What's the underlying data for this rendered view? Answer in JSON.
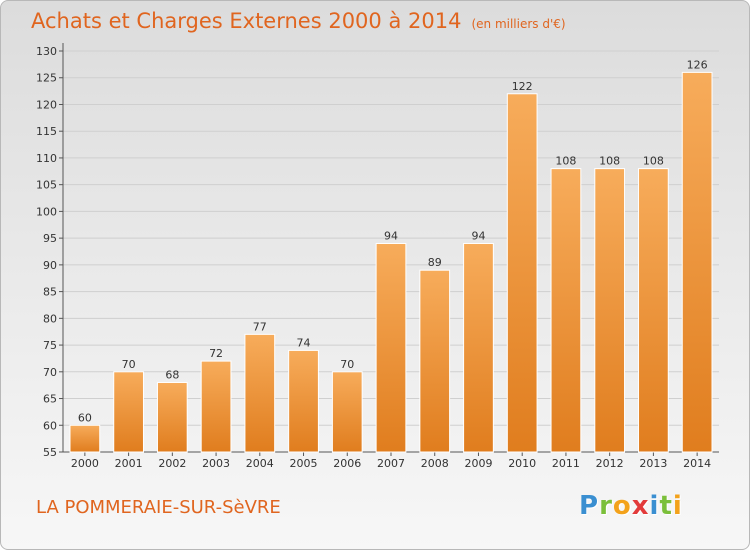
{
  "title": "Achats et Charges Externes 2000 à 2014",
  "unit": "(en milliers d'€)",
  "place": "LA POMMERAIE-SUR-SèVRE",
  "logo": {
    "letters": [
      "P",
      "r",
      "o",
      "x",
      "i",
      "t",
      "i"
    ],
    "colors": [
      "#3a8fd1",
      "#7bbf3a",
      "#f3a21b",
      "#e23a3a",
      "#3a8fd1",
      "#7bbf3a",
      "#f3a21b"
    ]
  },
  "colors": {
    "bar_light": "#f7ac5b",
    "bar_dark": "#e07d1e",
    "text_accent": "#e0651f"
  },
  "chart_data": {
    "type": "bar",
    "title": "Achats et Charges Externes 2000 à 2014",
    "categories": [
      "2000",
      "2001",
      "2002",
      "2003",
      "2004",
      "2005",
      "2006",
      "2007",
      "2008",
      "2009",
      "2010",
      "2011",
      "2012",
      "2013",
      "2014"
    ],
    "values": [
      60,
      70,
      68,
      72,
      77,
      74,
      70,
      94,
      89,
      94,
      122,
      108,
      108,
      108,
      126
    ],
    "ylim": [
      55,
      130
    ],
    "yticks": [
      55,
      60,
      65,
      70,
      75,
      80,
      85,
      90,
      95,
      100,
      105,
      110,
      115,
      120,
      125,
      130
    ],
    "grid": true,
    "data_labels": true
  }
}
